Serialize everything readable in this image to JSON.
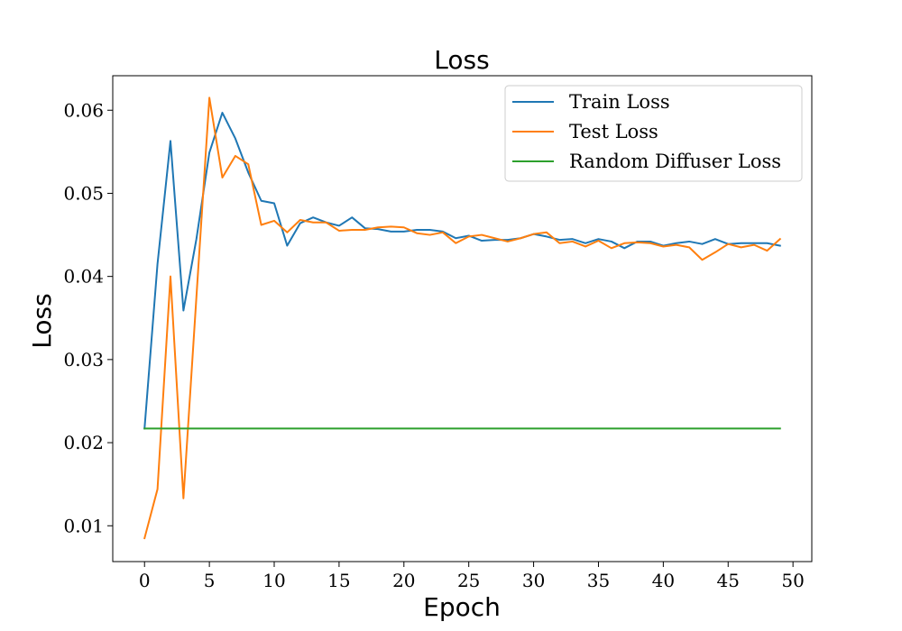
{
  "chart_data": {
    "type": "line",
    "title": "Loss",
    "xlabel": "Epoch",
    "ylabel": "Loss",
    "xlim": [
      -2.45,
      51.45
    ],
    "ylim": [
      0.00569,
      0.06415
    ],
    "xticks": [
      0,
      5,
      10,
      15,
      20,
      25,
      30,
      35,
      40,
      45,
      50
    ],
    "yticks": [
      0.01,
      0.02,
      0.03,
      0.04,
      0.05,
      0.06
    ],
    "ytick_labels": [
      "0.01",
      "0.02",
      "0.03",
      "0.04",
      "0.05",
      "0.06"
    ],
    "grid": false,
    "legend_position": "top-right",
    "x": [
      0,
      1,
      2,
      3,
      4,
      5,
      6,
      7,
      8,
      9,
      10,
      11,
      12,
      13,
      14,
      15,
      16,
      17,
      18,
      19,
      20,
      21,
      22,
      23,
      24,
      25,
      26,
      27,
      28,
      29,
      30,
      31,
      32,
      33,
      34,
      35,
      36,
      37,
      38,
      39,
      40,
      41,
      42,
      43,
      44,
      45,
      46,
      47,
      48,
      49
    ],
    "series": [
      {
        "name": "Train Loss",
        "color": "#1f77b4",
        "values": [
          0.0217,
          0.0415,
          0.0563,
          0.0359,
          0.0445,
          0.0549,
          0.0597,
          0.0566,
          0.0525,
          0.0491,
          0.0488,
          0.0437,
          0.0464,
          0.0471,
          0.0465,
          0.0461,
          0.0471,
          0.0458,
          0.0457,
          0.0454,
          0.0454,
          0.0456,
          0.0456,
          0.0454,
          0.0446,
          0.0449,
          0.0443,
          0.0444,
          0.0444,
          0.0446,
          0.0451,
          0.0448,
          0.0444,
          0.0445,
          0.044,
          0.0445,
          0.0442,
          0.0434,
          0.0442,
          0.0442,
          0.0437,
          0.044,
          0.0442,
          0.0439,
          0.0445,
          0.0439,
          0.044,
          0.044,
          0.044,
          0.0437
        ]
      },
      {
        "name": "Test Loss",
        "color": "#ff7f0e",
        "values": [
          0.0085,
          0.0144,
          0.04,
          0.0133,
          0.0375,
          0.0615,
          0.0519,
          0.0545,
          0.0535,
          0.0462,
          0.0467,
          0.0453,
          0.0468,
          0.0465,
          0.0465,
          0.0455,
          0.0456,
          0.0456,
          0.0459,
          0.046,
          0.0459,
          0.0452,
          0.045,
          0.0453,
          0.044,
          0.0448,
          0.045,
          0.0446,
          0.0442,
          0.0446,
          0.0451,
          0.0453,
          0.044,
          0.0442,
          0.0436,
          0.0443,
          0.0434,
          0.044,
          0.0441,
          0.044,
          0.0436,
          0.0438,
          0.0435,
          0.042,
          0.0429,
          0.0439,
          0.0435,
          0.0438,
          0.0431,
          0.0445
        ]
      },
      {
        "name": "Random Diffuser Loss",
        "color": "#2ca02c",
        "values": [
          0.0217,
          0.0217,
          0.0217,
          0.0217,
          0.0217,
          0.0217,
          0.0217,
          0.0217,
          0.0217,
          0.0217,
          0.0217,
          0.0217,
          0.0217,
          0.0217,
          0.0217,
          0.0217,
          0.0217,
          0.0217,
          0.0217,
          0.0217,
          0.0217,
          0.0217,
          0.0217,
          0.0217,
          0.0217,
          0.0217,
          0.0217,
          0.0217,
          0.0217,
          0.0217,
          0.0217,
          0.0217,
          0.0217,
          0.0217,
          0.0217,
          0.0217,
          0.0217,
          0.0217,
          0.0217,
          0.0217,
          0.0217,
          0.0217,
          0.0217,
          0.0217,
          0.0217,
          0.0217,
          0.0217,
          0.0217,
          0.0217,
          0.0217
        ]
      }
    ]
  }
}
